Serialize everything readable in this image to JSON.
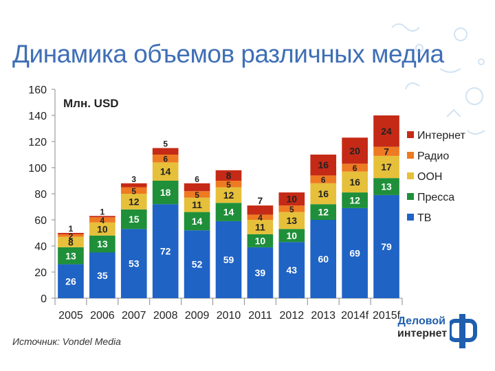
{
  "page": {
    "title": "Динамика объемов различных медиа",
    "source": "Источник: Vondel Media",
    "logo": {
      "line1": "Деловой",
      "line2": "интернет",
      "icon": "d-letter-logo-icon"
    }
  },
  "colors": {
    "title": "#3f6fb5",
    "tv": "#1f63c4",
    "pressa": "#1f8f3a",
    "ooh": "#e6c03a",
    "radio": "#ee7a22",
    "internet": "#c52a16"
  },
  "chart_data": {
    "type": "bar",
    "stacked": true,
    "unit_label": "Млн. USD",
    "ylim": [
      0,
      160
    ],
    "yticks": [
      0,
      20,
      40,
      60,
      80,
      100,
      120,
      140,
      160
    ],
    "categories": [
      "2005",
      "2006",
      "2007",
      "2008",
      "2009",
      "2010",
      "2011",
      "2012",
      "2013",
      "2014f",
      "2015f"
    ],
    "series": [
      {
        "name": "ТВ",
        "key": "tv",
        "values": [
          26,
          35,
          53,
          72,
          52,
          59,
          39,
          43,
          60,
          69,
          79
        ]
      },
      {
        "name": "Пресса",
        "key": "pressa",
        "values": [
          13,
          13,
          15,
          18,
          14,
          14,
          10,
          10,
          12,
          12,
          13
        ]
      },
      {
        "name": "OOH",
        "key": "ooh",
        "values": [
          8,
          10,
          12,
          14,
          11,
          12,
          11,
          13,
          16,
          16,
          17
        ]
      },
      {
        "name": "Радио",
        "key": "radio",
        "values": [
          2,
          4,
          5,
          6,
          5,
          5,
          4,
          5,
          6,
          6,
          7
        ]
      },
      {
        "name": "Интернет",
        "key": "internet",
        "values": [
          1,
          1,
          3,
          5,
          6,
          8,
          7,
          10,
          16,
          20,
          24
        ]
      }
    ],
    "legend_order": [
      "Интернет",
      "Радио",
      "OOH",
      "Пресса",
      "ТВ"
    ],
    "legend_position": "right"
  }
}
